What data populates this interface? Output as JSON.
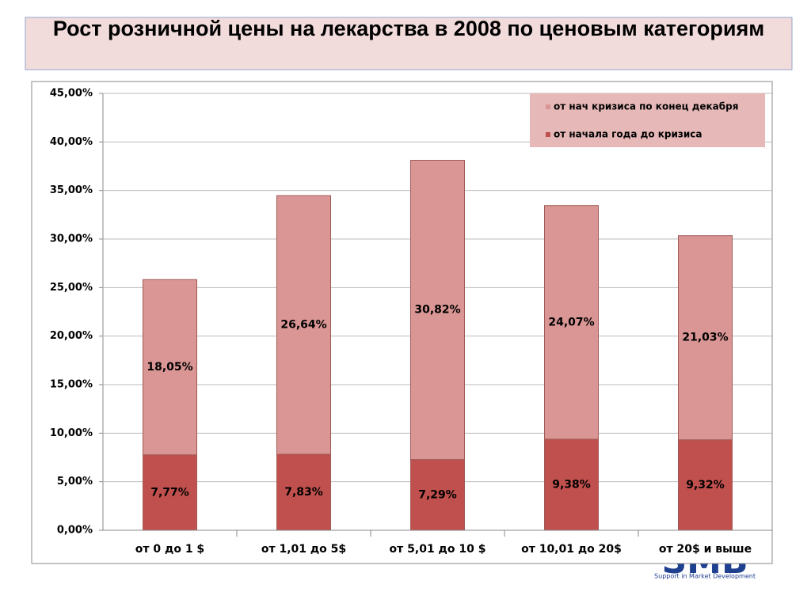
{
  "chart_data": {
    "type": "stacked-bar",
    "title": "Рост розничной цены на лекарства в 2008 по ценовым категориям",
    "categories": [
      "от 0 до 1 $",
      "от 1,01 до 5$",
      "от 5,01 до 10 $",
      "от 10,01 до 20$",
      "от 20$ и выше"
    ],
    "series": [
      {
        "name": "от начала года до кризиса",
        "color": "#c0504d",
        "values": [
          7.77,
          7.83,
          7.29,
          9.38,
          9.32
        ],
        "value_labels": [
          "7,77%",
          "7,83%",
          "7,29%",
          "9,38%",
          "9,32%"
        ]
      },
      {
        "name": "от нач кризиса по конец декабря",
        "color": "#d99694",
        "values": [
          18.05,
          26.64,
          30.82,
          24.07,
          21.03
        ],
        "value_labels": [
          "18,05%",
          "26,64%",
          "30,82%",
          "24,07%",
          "21,03%"
        ]
      }
    ],
    "ylim": [
      0,
      45
    ],
    "yticks": [
      {
        "value": 0,
        "label": "0,00%"
      },
      {
        "value": 5,
        "label": "5,00%"
      },
      {
        "value": 10,
        "label": "10,00%"
      },
      {
        "value": 15,
        "label": "15,00%"
      },
      {
        "value": 20,
        "label": "20,00%"
      },
      {
        "value": 25,
        "label": "25,00%"
      },
      {
        "value": 30,
        "label": "30,00%"
      },
      {
        "value": 35,
        "label": "35,00%"
      },
      {
        "value": 40,
        "label": "40,00%"
      },
      {
        "value": 45,
        "label": "45,00%"
      }
    ],
    "grid": true,
    "legend": "top-right"
  },
  "logo": {
    "text": "SMB",
    "tagline": "Support in Market Development"
  }
}
